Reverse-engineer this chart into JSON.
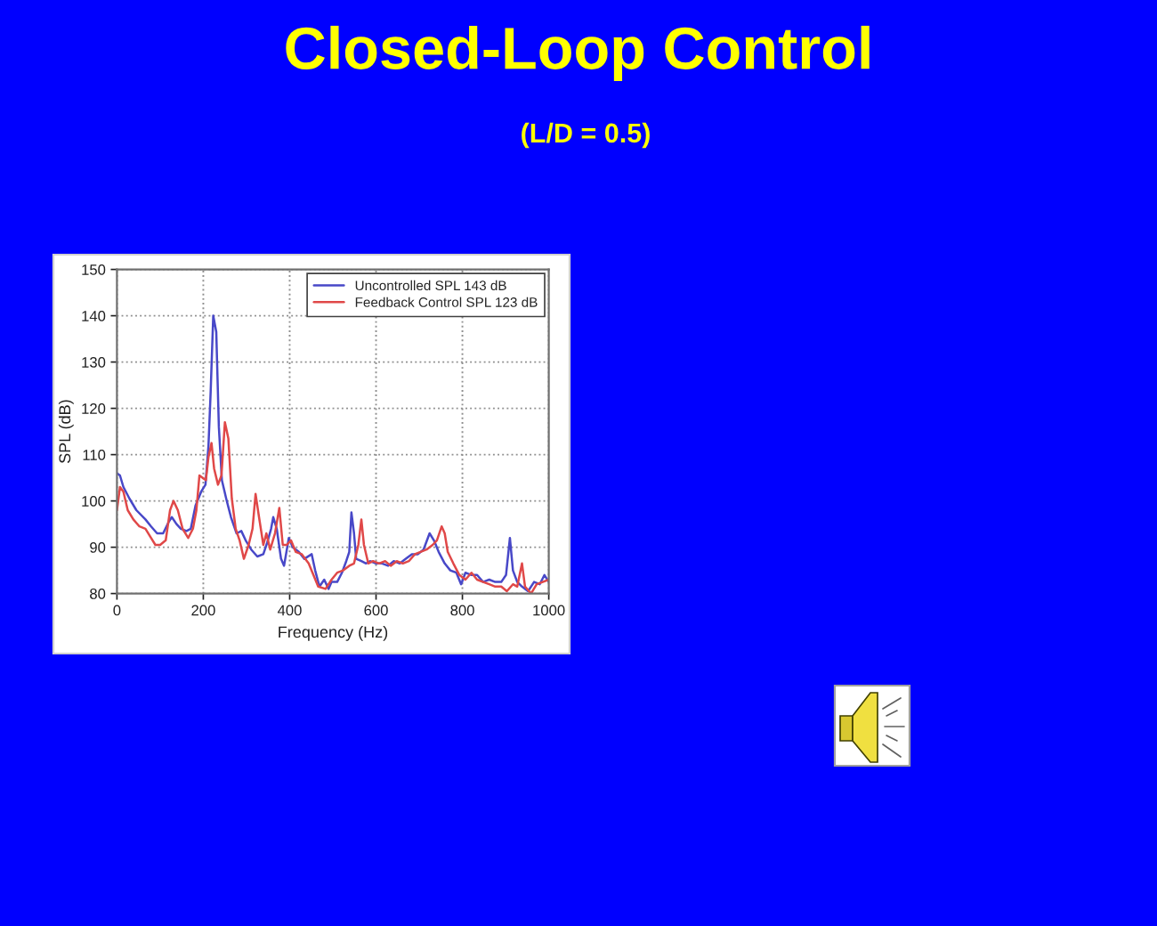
{
  "chart_data": {
    "type": "line",
    "title": "Closed-Loop Control",
    "subtitle": "(L/D = 0.5)",
    "xlabel": "Frequency (Hz)",
    "ylabel": "SPL (dB)",
    "xlim": [
      0,
      1000
    ],
    "xticks": [
      0,
      200,
      400,
      600,
      800,
      1000
    ],
    "ylim": [
      80,
      150
    ],
    "yticks": [
      80,
      90,
      100,
      110,
      120,
      130,
      140,
      150
    ],
    "grid": true,
    "legend": "top right",
    "line_style": "solid",
    "series": [
      {
        "name": "Uncontrolled SPL 143 dB",
        "color": "#4848c8",
        "x": [
          0,
          7,
          15,
          29,
          45,
          66,
          79,
          93,
          107,
          120,
          127,
          138,
          148,
          161,
          171,
          182,
          195,
          205,
          212,
          217,
          223,
          230,
          236,
          243,
          253,
          264,
          277,
          288,
          298,
          311,
          325,
          339,
          348,
          357,
          362,
          370,
          380,
          387,
          398,
          407,
          421,
          434,
          451,
          459,
          469,
          480,
          490,
          497,
          510,
          521,
          531,
          538,
          543,
          549,
          554,
          566,
          577,
          586,
          600,
          614,
          628,
          641,
          655,
          669,
          683,
          697,
          710,
          724,
          734,
          745,
          759,
          772,
          786,
          797,
          807,
          821,
          834,
          848,
          862,
          876,
          890,
          901,
          910,
          917,
          927,
          938,
          952,
          966,
          979,
          990,
          1000
        ],
        "values": [
          106,
          105.5,
          103,
          100.5,
          98,
          96,
          94.5,
          93,
          93,
          95.5,
          96.5,
          95,
          94,
          93.5,
          94,
          99,
          102,
          103.5,
          112,
          123.5,
          140,
          136.5,
          116,
          104.5,
          100.5,
          96.5,
          93,
          93.5,
          91.5,
          89.5,
          88,
          88.5,
          91,
          94,
          96.5,
          94,
          87.5,
          86,
          92,
          90,
          89,
          87.5,
          88.5,
          85,
          81.5,
          83,
          81,
          82.5,
          82.5,
          84.5,
          87,
          89,
          97.5,
          93,
          87.5,
          87,
          86.5,
          87,
          86.5,
          86.5,
          86,
          87,
          86.5,
          87.5,
          88.5,
          88.5,
          89.5,
          93,
          91.5,
          89,
          86.5,
          85,
          84.5,
          82,
          84.5,
          84,
          84,
          82.5,
          83,
          82.5,
          82.5,
          84,
          92,
          85,
          82.5,
          81.5,
          80.5,
          82.5,
          82,
          84,
          82.5
        ]
      },
      {
        "name": "Feedback Control SPL 123 dB",
        "color": "#e04848",
        "x": [
          0,
          7,
          15,
          25,
          38,
          52,
          66,
          79,
          89,
          100,
          113,
          123,
          131,
          141,
          152,
          165,
          176,
          184,
          191,
          198,
          206,
          212,
          219,
          225,
          234,
          242,
          250,
          258,
          266,
          275,
          284,
          294,
          305,
          314,
          321,
          329,
          339,
          346,
          355,
          366,
          376,
          384,
          393,
          403,
          414,
          428,
          444,
          455,
          466,
          483,
          497,
          510,
          524,
          538,
          549,
          559,
          566,
          572,
          582,
          593,
          607,
          621,
          634,
          648,
          662,
          676,
          690,
          703,
          717,
          731,
          741,
          752,
          759,
          766,
          779,
          793,
          807,
          821,
          834,
          848,
          862,
          876,
          890,
          903,
          917,
          927,
          938,
          945,
          959,
          972,
          986,
          1000
        ],
        "values": [
          98,
          103,
          102,
          98,
          96,
          94.5,
          94,
          92,
          90.5,
          90.5,
          91.5,
          98,
          100,
          98,
          94,
          92,
          94,
          98,
          105.5,
          105,
          104.5,
          109.5,
          112.5,
          107,
          103.5,
          105.5,
          117,
          113.5,
          100.5,
          94,
          91.5,
          87.5,
          90.5,
          94,
          101.5,
          96.5,
          90.5,
          93,
          89.5,
          93,
          98.5,
          90.5,
          90.5,
          91.5,
          89,
          88.5,
          86.5,
          84,
          81.5,
          81,
          83,
          84.5,
          85,
          86,
          86.5,
          90.5,
          96,
          90.5,
          86.5,
          87,
          86.5,
          87,
          86,
          87,
          86.5,
          87,
          88.5,
          89,
          89.5,
          90.5,
          91.5,
          94.5,
          93,
          89,
          86.5,
          84,
          83,
          84.5,
          83,
          82.5,
          82,
          81.5,
          81.5,
          80.5,
          82,
          81.5,
          86.5,
          81.5,
          80,
          82,
          82.5,
          83
        ]
      }
    ]
  }
}
